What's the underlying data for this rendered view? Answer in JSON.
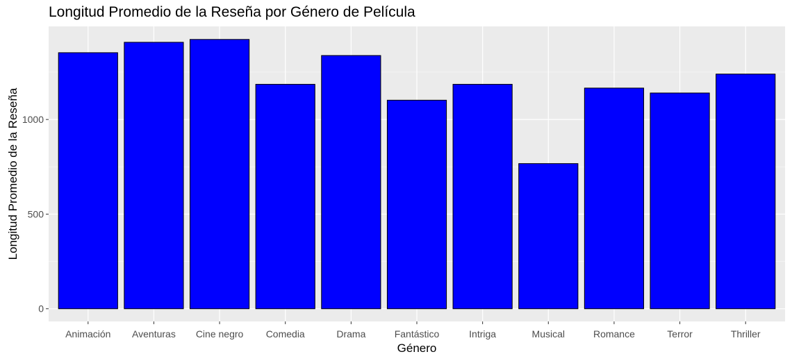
{
  "chart_data": {
    "type": "bar",
    "title": "Longitud Promedio de la Reseña por Género de Película",
    "xlabel": "Género",
    "ylabel": "Longitud Promedio de la Reseña",
    "categories": [
      "Animación",
      "Aventuras",
      "Cine negro",
      "Comedia",
      "Drama",
      "Fantástico",
      "Intriga",
      "Musical",
      "Romance",
      "Terror",
      "Thriller"
    ],
    "values": [
      1353,
      1408,
      1423,
      1186,
      1338,
      1102,
      1186,
      767,
      1166,
      1140,
      1240
    ],
    "ylim": [
      -67,
      1492
    ],
    "yticks": [
      0,
      500,
      1000
    ],
    "ytick_labels": [
      "0",
      "500",
      "1000"
    ],
    "grid": true,
    "legend": "none",
    "colors": {
      "bar_fill": "#0000ff",
      "bar_stroke": "#000000",
      "panel_bg": "#ebebeb",
      "grid_major": "#ffffff",
      "tick_text": "#4d4d4d"
    }
  }
}
